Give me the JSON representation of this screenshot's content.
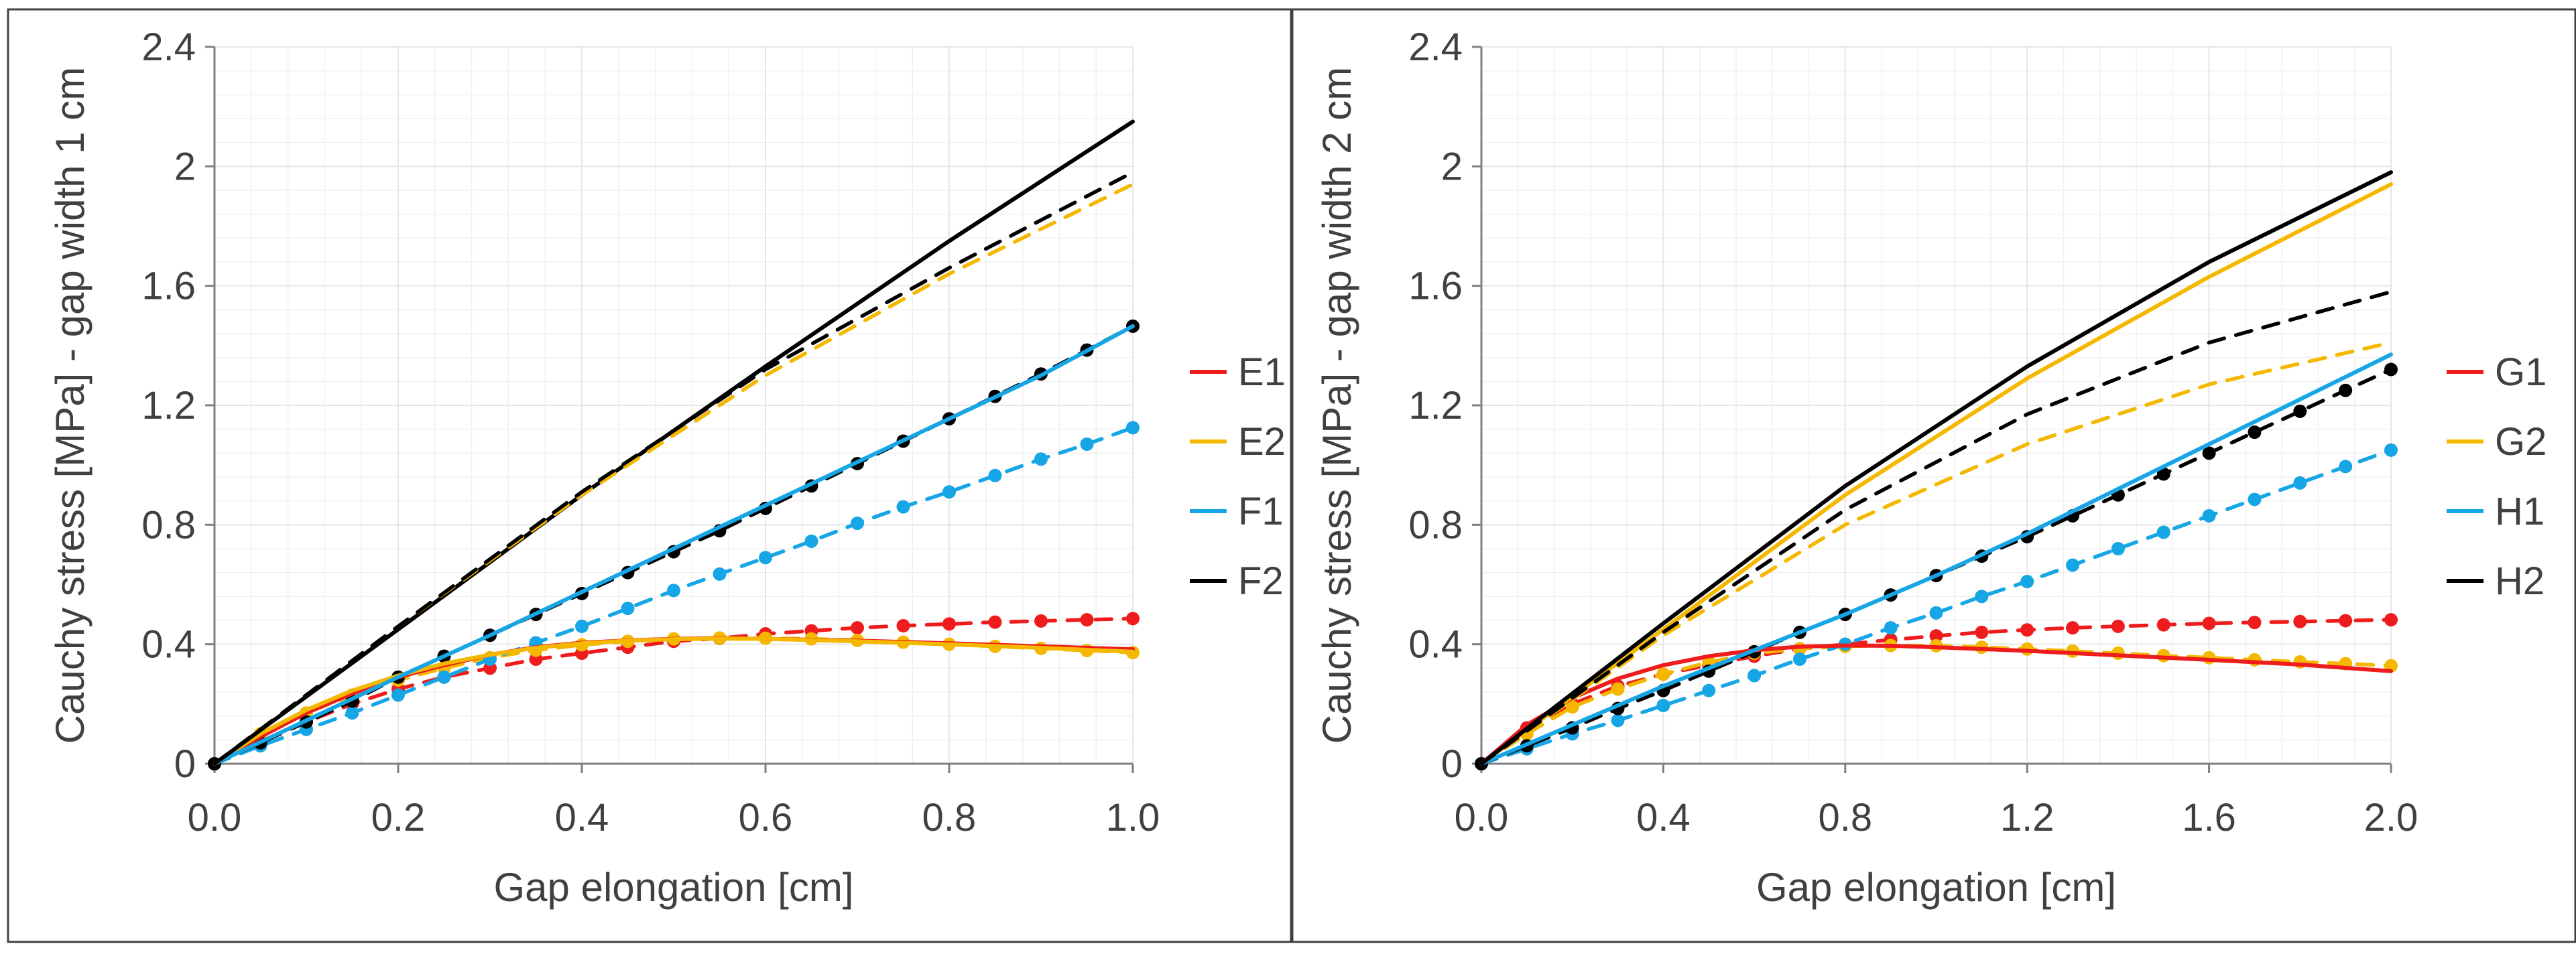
{
  "colors": {
    "E1": "#ee1c1c",
    "E2": "#f5b800",
    "F1": "#16a6e6",
    "F2": "#000000",
    "G1": "#ee1c1c",
    "G2": "#f5b800",
    "H1": "#16a6e6",
    "H2": "#000000",
    "grid": "#e6e6e6",
    "axis": "#808080",
    "frame": "#404040",
    "text": "#404040"
  },
  "chart_data": [
    {
      "type": "line",
      "title": "",
      "xlabel": "Gap elongation [cm]",
      "ylabel": "Cauchy stress [MPa] - gap width 1 cm",
      "xlim": [
        0,
        1.0
      ],
      "ylim": [
        0,
        2.4
      ],
      "grid": true,
      "legend_position": "right",
      "xticks": [
        "0.0",
        "0.2",
        "0.4",
        "0.6",
        "0.8",
        "1.0"
      ],
      "yticks": [
        "0",
        "0.4",
        "0.8",
        "1.2",
        "1.6",
        "2",
        "2.4"
      ],
      "legend": [
        {
          "label": "E1",
          "color_key": "E1"
        },
        {
          "label": "E2",
          "color_key": "E2"
        },
        {
          "label": "F1",
          "color_key": "F1"
        },
        {
          "label": "F2",
          "color_key": "F2"
        }
      ],
      "series": [
        {
          "name": "E1 dashed",
          "color_key": "E1",
          "style": "dashed",
          "markers": true,
          "x": [
            0,
            0.05,
            0.1,
            0.15,
            0.2,
            0.25,
            0.3,
            0.35,
            0.4,
            0.45,
            0.5,
            0.55,
            0.6,
            0.65,
            0.7,
            0.75,
            0.8,
            0.85,
            0.9,
            0.95,
            1.0
          ],
          "y": [
            0,
            0.07,
            0.14,
            0.2,
            0.25,
            0.29,
            0.32,
            0.35,
            0.37,
            0.39,
            0.41,
            0.42,
            0.435,
            0.445,
            0.455,
            0.462,
            0.468,
            0.474,
            0.478,
            0.482,
            0.486
          ]
        },
        {
          "name": "E2 dashed",
          "color_key": "E2",
          "style": "dashed",
          "markers": true,
          "x": [
            0,
            0.05,
            0.1,
            0.15,
            0.2,
            0.25,
            0.3,
            0.35,
            0.4,
            0.45,
            0.5,
            0.55,
            0.6,
            0.65,
            0.7,
            0.75,
            0.8,
            0.85,
            0.9,
            0.95,
            1.0
          ],
          "y": [
            0,
            0.1,
            0.17,
            0.23,
            0.28,
            0.32,
            0.355,
            0.38,
            0.398,
            0.41,
            0.418,
            0.421,
            0.42,
            0.418,
            0.413,
            0.407,
            0.4,
            0.393,
            0.386,
            0.379,
            0.372
          ]
        },
        {
          "name": "F1 dashed",
          "color_key": "F1",
          "style": "dashed",
          "markers": true,
          "x": [
            0,
            0.05,
            0.1,
            0.15,
            0.2,
            0.25,
            0.3,
            0.35,
            0.4,
            0.45,
            0.5,
            0.55,
            0.6,
            0.65,
            0.7,
            0.75,
            0.8,
            0.85,
            0.9,
            0.95,
            1.0
          ],
          "y": [
            0,
            0.06,
            0.115,
            0.17,
            0.23,
            0.29,
            0.35,
            0.405,
            0.46,
            0.52,
            0.58,
            0.635,
            0.69,
            0.745,
            0.805,
            0.86,
            0.91,
            0.965,
            1.02,
            1.07,
            1.125
          ]
        },
        {
          "name": "F2 dashed",
          "color_key": "F2",
          "style": "dashed",
          "markers": true,
          "x": [
            0,
            0.05,
            0.1,
            0.15,
            0.2,
            0.25,
            0.3,
            0.35,
            0.4,
            0.45,
            0.5,
            0.55,
            0.6,
            0.65,
            0.7,
            0.75,
            0.8,
            0.85,
            0.9,
            0.95,
            1.0
          ],
          "y": [
            0,
            0.07,
            0.14,
            0.21,
            0.29,
            0.36,
            0.43,
            0.5,
            0.57,
            0.64,
            0.71,
            0.78,
            0.855,
            0.93,
            1.005,
            1.08,
            1.155,
            1.23,
            1.305,
            1.385,
            1.465
          ]
        },
        {
          "name": "E1",
          "color_key": "E1",
          "style": "solid",
          "markers": false,
          "x": [
            0,
            0.05,
            0.1,
            0.15,
            0.2,
            0.25,
            0.3,
            0.35,
            0.4,
            0.45,
            0.5,
            0.55,
            0.6,
            0.7,
            0.8,
            0.9,
            1.0
          ],
          "y": [
            0,
            0.09,
            0.17,
            0.235,
            0.29,
            0.33,
            0.365,
            0.39,
            0.405,
            0.413,
            0.418,
            0.42,
            0.418,
            0.412,
            0.403,
            0.393,
            0.383
          ]
        },
        {
          "name": "E2",
          "color_key": "E2",
          "style": "solid",
          "markers": false,
          "x": [
            0,
            0.05,
            0.1,
            0.15,
            0.2,
            0.25,
            0.3,
            0.35,
            0.4,
            0.45,
            0.5,
            0.55,
            0.6,
            0.7,
            0.8,
            0.9,
            1.0
          ],
          "y": [
            0,
            0.1,
            0.18,
            0.245,
            0.295,
            0.335,
            0.365,
            0.388,
            0.403,
            0.412,
            0.417,
            0.419,
            0.418,
            0.41,
            0.4,
            0.388,
            0.375
          ]
        },
        {
          "name": "F1",
          "color_key": "F1",
          "style": "solid",
          "markers": false,
          "x": [
            0,
            0.1,
            0.2,
            0.3,
            0.4,
            0.5,
            0.6,
            0.7,
            0.8,
            0.9,
            1.0
          ],
          "y": [
            0,
            0.145,
            0.29,
            0.43,
            0.575,
            0.72,
            0.865,
            1.01,
            1.155,
            1.3,
            1.465
          ]
        },
        {
          "name": "F2",
          "color_key": "F2",
          "style": "solid",
          "markers": false,
          "x": [
            0,
            0.2,
            0.4,
            0.6,
            0.8,
            1.0
          ],
          "y": [
            0,
            0.45,
            0.9,
            1.33,
            1.75,
            2.15
          ]
        },
        {
          "name": "E2 dashed (no marker)",
          "color_key": "E2",
          "style": "dashed",
          "markers": false,
          "x": [
            0,
            0.2,
            0.4,
            0.6,
            0.8,
            1.0
          ],
          "y": [
            0,
            0.46,
            0.9,
            1.3,
            1.64,
            1.94
          ]
        },
        {
          "name": "F2 dashed (no marker)",
          "color_key": "F2",
          "style": "dashed",
          "markers": false,
          "x": [
            0,
            0.2,
            0.4,
            0.6,
            0.8,
            1.0
          ],
          "y": [
            0,
            0.46,
            0.91,
            1.32,
            1.66,
            1.98
          ]
        }
      ]
    },
    {
      "type": "line",
      "title": "",
      "xlabel": "Gap elongation [cm]",
      "ylabel": "Cauchy stress [MPa] - gap width 2 cm",
      "xlim": [
        0,
        2.0
      ],
      "ylim": [
        0,
        2.4
      ],
      "grid": true,
      "legend_position": "right",
      "xticks": [
        "0.0",
        "0.4",
        "0.8",
        "1.2",
        "1.6",
        "2.0"
      ],
      "yticks": [
        "0",
        "0.4",
        "0.8",
        "1.2",
        "1.6",
        "2",
        "2.4"
      ],
      "legend": [
        {
          "label": "G1",
          "color_key": "G1"
        },
        {
          "label": "G2",
          "color_key": "G2"
        },
        {
          "label": "H1",
          "color_key": "H1"
        },
        {
          "label": "H2",
          "color_key": "H2"
        }
      ],
      "series": [
        {
          "name": "G1 dashed",
          "color_key": "G1",
          "style": "dashed",
          "markers": true,
          "x": [
            0,
            0.1,
            0.2,
            0.3,
            0.4,
            0.5,
            0.6,
            0.7,
            0.8,
            0.9,
            1.0,
            1.1,
            1.2,
            1.3,
            1.4,
            1.5,
            1.6,
            1.7,
            1.8,
            1.9,
            2.0
          ],
          "y": [
            0,
            0.12,
            0.2,
            0.26,
            0.3,
            0.33,
            0.36,
            0.385,
            0.4,
            0.415,
            0.428,
            0.44,
            0.448,
            0.455,
            0.46,
            0.465,
            0.47,
            0.473,
            0.476,
            0.479,
            0.482
          ]
        },
        {
          "name": "G2 dashed",
          "color_key": "G2",
          "style": "dashed",
          "markers": true,
          "x": [
            0,
            0.1,
            0.2,
            0.3,
            0.4,
            0.5,
            0.6,
            0.7,
            0.8,
            0.9,
            1.0,
            1.1,
            1.2,
            1.3,
            1.4,
            1.5,
            1.6,
            1.7,
            1.8,
            1.9,
            2.0
          ],
          "y": [
            0,
            0.1,
            0.19,
            0.25,
            0.3,
            0.34,
            0.37,
            0.385,
            0.393,
            0.396,
            0.395,
            0.39,
            0.384,
            0.377,
            0.37,
            0.362,
            0.355,
            0.348,
            0.341,
            0.335,
            0.328
          ]
        },
        {
          "name": "H1 dashed",
          "color_key": "H1",
          "style": "dashed",
          "markers": true,
          "x": [
            0,
            0.1,
            0.2,
            0.3,
            0.4,
            0.5,
            0.6,
            0.7,
            0.8,
            0.9,
            1.0,
            1.1,
            1.2,
            1.3,
            1.4,
            1.5,
            1.6,
            1.7,
            1.8,
            1.9,
            2.0
          ],
          "y": [
            0,
            0.05,
            0.1,
            0.145,
            0.195,
            0.245,
            0.295,
            0.35,
            0.4,
            0.455,
            0.505,
            0.56,
            0.61,
            0.665,
            0.72,
            0.775,
            0.83,
            0.885,
            0.94,
            0.995,
            1.05
          ]
        },
        {
          "name": "H2 dashed",
          "color_key": "H2",
          "style": "dashed",
          "markers": true,
          "x": [
            0,
            0.1,
            0.2,
            0.3,
            0.4,
            0.5,
            0.6,
            0.7,
            0.8,
            0.9,
            1.0,
            1.1,
            1.2,
            1.3,
            1.4,
            1.5,
            1.6,
            1.7,
            1.8,
            1.9,
            2.0
          ],
          "y": [
            0,
            0.06,
            0.12,
            0.185,
            0.245,
            0.31,
            0.375,
            0.44,
            0.5,
            0.565,
            0.63,
            0.695,
            0.76,
            0.83,
            0.9,
            0.97,
            1.04,
            1.11,
            1.18,
            1.25,
            1.32
          ]
        },
        {
          "name": "G1",
          "color_key": "G1",
          "style": "solid",
          "markers": false,
          "x": [
            0,
            0.1,
            0.2,
            0.3,
            0.4,
            0.5,
            0.6,
            0.7,
            0.8,
            0.9,
            1.0,
            1.2,
            1.4,
            1.6,
            1.8,
            2.0
          ],
          "y": [
            0,
            0.13,
            0.22,
            0.285,
            0.33,
            0.36,
            0.38,
            0.392,
            0.396,
            0.395,
            0.39,
            0.378,
            0.363,
            0.348,
            0.332,
            0.31
          ]
        },
        {
          "name": "G2",
          "color_key": "G2",
          "style": "solid",
          "markers": false,
          "x": [
            0,
            0.4,
            0.8,
            1.2,
            1.6,
            2.0
          ],
          "y": [
            0,
            0.45,
            0.9,
            1.29,
            1.63,
            1.94
          ]
        },
        {
          "name": "H1",
          "color_key": "H1",
          "style": "solid",
          "markers": false,
          "x": [
            0,
            0.2,
            0.4,
            0.6,
            0.8,
            1.0,
            1.2,
            1.4,
            1.6,
            1.8,
            2.0
          ],
          "y": [
            0,
            0.13,
            0.26,
            0.38,
            0.5,
            0.63,
            0.77,
            0.92,
            1.07,
            1.22,
            1.37
          ]
        },
        {
          "name": "H2",
          "color_key": "H2",
          "style": "solid",
          "markers": false,
          "x": [
            0,
            0.4,
            0.8,
            1.2,
            1.6,
            2.0
          ],
          "y": [
            0,
            0.47,
            0.93,
            1.33,
            1.68,
            1.98
          ]
        },
        {
          "name": "G2 dashed (no marker)",
          "color_key": "G2",
          "style": "dashed",
          "markers": false,
          "x": [
            0,
            0.4,
            0.8,
            1.2,
            1.6,
            2.0
          ],
          "y": [
            0,
            0.43,
            0.8,
            1.07,
            1.27,
            1.41
          ]
        },
        {
          "name": "H2 dashed (no marker)",
          "color_key": "H2",
          "style": "dashed",
          "markers": false,
          "x": [
            0,
            0.4,
            0.8,
            1.2,
            1.6,
            2.0
          ],
          "y": [
            0,
            0.44,
            0.85,
            1.17,
            1.41,
            1.58
          ]
        }
      ]
    }
  ]
}
